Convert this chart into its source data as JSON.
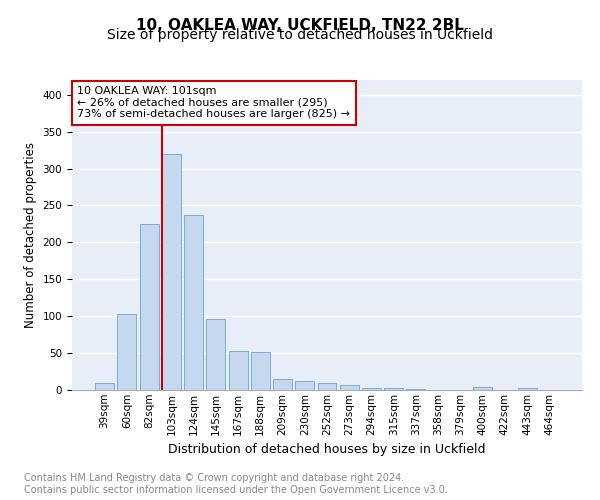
{
  "title": "10, OAKLEA WAY, UCKFIELD, TN22 2BL",
  "subtitle": "Size of property relative to detached houses in Uckfield",
  "xlabel": "Distribution of detached houses by size in Uckfield",
  "ylabel": "Number of detached properties",
  "categories": [
    "39sqm",
    "60sqm",
    "82sqm",
    "103sqm",
    "124sqm",
    "145sqm",
    "167sqm",
    "188sqm",
    "209sqm",
    "230sqm",
    "252sqm",
    "273sqm",
    "294sqm",
    "315sqm",
    "337sqm",
    "358sqm",
    "379sqm",
    "400sqm",
    "422sqm",
    "443sqm",
    "464sqm"
  ],
  "values": [
    10,
    103,
    225,
    320,
    237,
    96,
    53,
    51,
    15,
    12,
    10,
    7,
    3,
    3,
    1,
    0,
    0,
    4,
    0,
    3,
    0
  ],
  "bar_color": "#c5d8f0",
  "bar_edge_color": "#7aadd4",
  "vline_color": "#cc0000",
  "annotation_text": "10 OAKLEA WAY: 101sqm\n← 26% of detached houses are smaller (295)\n73% of semi-detached houses are larger (825) →",
  "annotation_box_facecolor": "#ffffff",
  "annotation_box_edgecolor": "#cc0000",
  "ylim": [
    0,
    420
  ],
  "yticks": [
    0,
    50,
    100,
    150,
    200,
    250,
    300,
    350,
    400
  ],
  "bg_color": "#e8eef8",
  "footer_text": "Contains HM Land Registry data © Crown copyright and database right 2024.\nContains public sector information licensed under the Open Government Licence v3.0.",
  "title_fontsize": 11,
  "subtitle_fontsize": 10,
  "xlabel_fontsize": 9,
  "ylabel_fontsize": 8.5,
  "tick_fontsize": 7.5,
  "annotation_fontsize": 8,
  "footer_fontsize": 7
}
